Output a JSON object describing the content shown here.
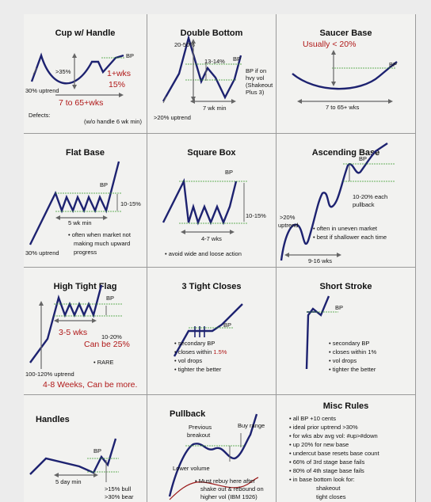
{
  "panels": {
    "cup": {
      "title": "Cup w/ Handle",
      "depth": ">35%",
      "weeks": "1+wks",
      "handle_pct": "15%",
      "bp": "BP",
      "uptrend": "30% uptrend",
      "span": "7 to 65+wks",
      "defects": "Defects:",
      "note": "(w/o handle 6 wk min)"
    },
    "double_bottom": {
      "title": "Double Bottom",
      "depth": "20-50%",
      "mid": "13-14%",
      "bp": "BP",
      "bp_note": [
        "BP if on",
        "hvy vol",
        "(Shakeout",
        "Plus 3)"
      ],
      "min": "7 wk min",
      "uptrend": ">20% uptrend"
    },
    "saucer": {
      "title": "Saucer Base",
      "depth": "Usually < 20%",
      "bp": "BP",
      "span": "7 to 65+ wks"
    },
    "flat": {
      "title": "Flat Base",
      "bp": "BP",
      "range": "10-15%",
      "min": "5 wk min",
      "uptrend": "30% uptrend",
      "bullets": [
        "often when market not",
        "making much upward",
        "progress"
      ]
    },
    "square": {
      "title": "Square Box",
      "bp": "BP",
      "range": "10-15%",
      "span": "4-7 wks",
      "bullets": [
        "avoid wide and loose action"
      ]
    },
    "ascending": {
      "title": "Ascending Base",
      "bp": "BP",
      "pullback": [
        "10-20% each",
        "pullback"
      ],
      "uptrend": [
        ">20%",
        "uptrend"
      ],
      "bullets": [
        "often in uneven market",
        "best if shallower each time"
      ],
      "span": "9-16 wks"
    },
    "htf": {
      "title": "High Tight Flag",
      "weeks": "3-5 wks",
      "range": "10-20%",
      "range2": "Can be 25%",
      "bp": "BP",
      "rare": "RARE",
      "uptrend": "100-120% uptrend",
      "span": "4-8 Weeks, Can be more."
    },
    "three_tight": {
      "title": "3 Tight Closes",
      "bp": "BP",
      "bullets": [
        "secondary BP",
        "closes within ",
        "vol drops",
        "tighter the better"
      ],
      "within_pct": "1.5%"
    },
    "short_stroke": {
      "title": "Short Stroke",
      "bp": "BP",
      "bullets": [
        "secondary BP",
        "closes within 1%",
        "vol drops",
        "tighter the better"
      ]
    },
    "handles": {
      "title": "Handles",
      "bp": "BP",
      "min": "5 day min",
      "bull": ">15% bull",
      "bear": ">30% bear"
    },
    "pullback": {
      "title": "Pullback",
      "prev": [
        "Previous",
        "breakout"
      ],
      "buy": "Buy range",
      "lower": "Lower volume",
      "bullets": [
        "Must rebuy here after",
        "shake out & rebound on",
        "higher vol (IBM 1926)"
      ]
    },
    "misc": {
      "title": "Misc Rules",
      "bullets": [
        "all BP +10 cents",
        "ideal prior uptrend >30%",
        "for wks abv avg vol: #up>#down",
        "up 20% for new base",
        "undercut base resets base count",
        "66% of 3rd stage base fails",
        "80% of 4th stage base fails",
        "in base bottom look for:"
      ],
      "sub": [
        "shakeout",
        "tight closes"
      ]
    }
  },
  "colors": {
    "line": "#1d2270",
    "guide": "#3a9a2a",
    "red": "#b01818",
    "arrow": "#666666"
  }
}
